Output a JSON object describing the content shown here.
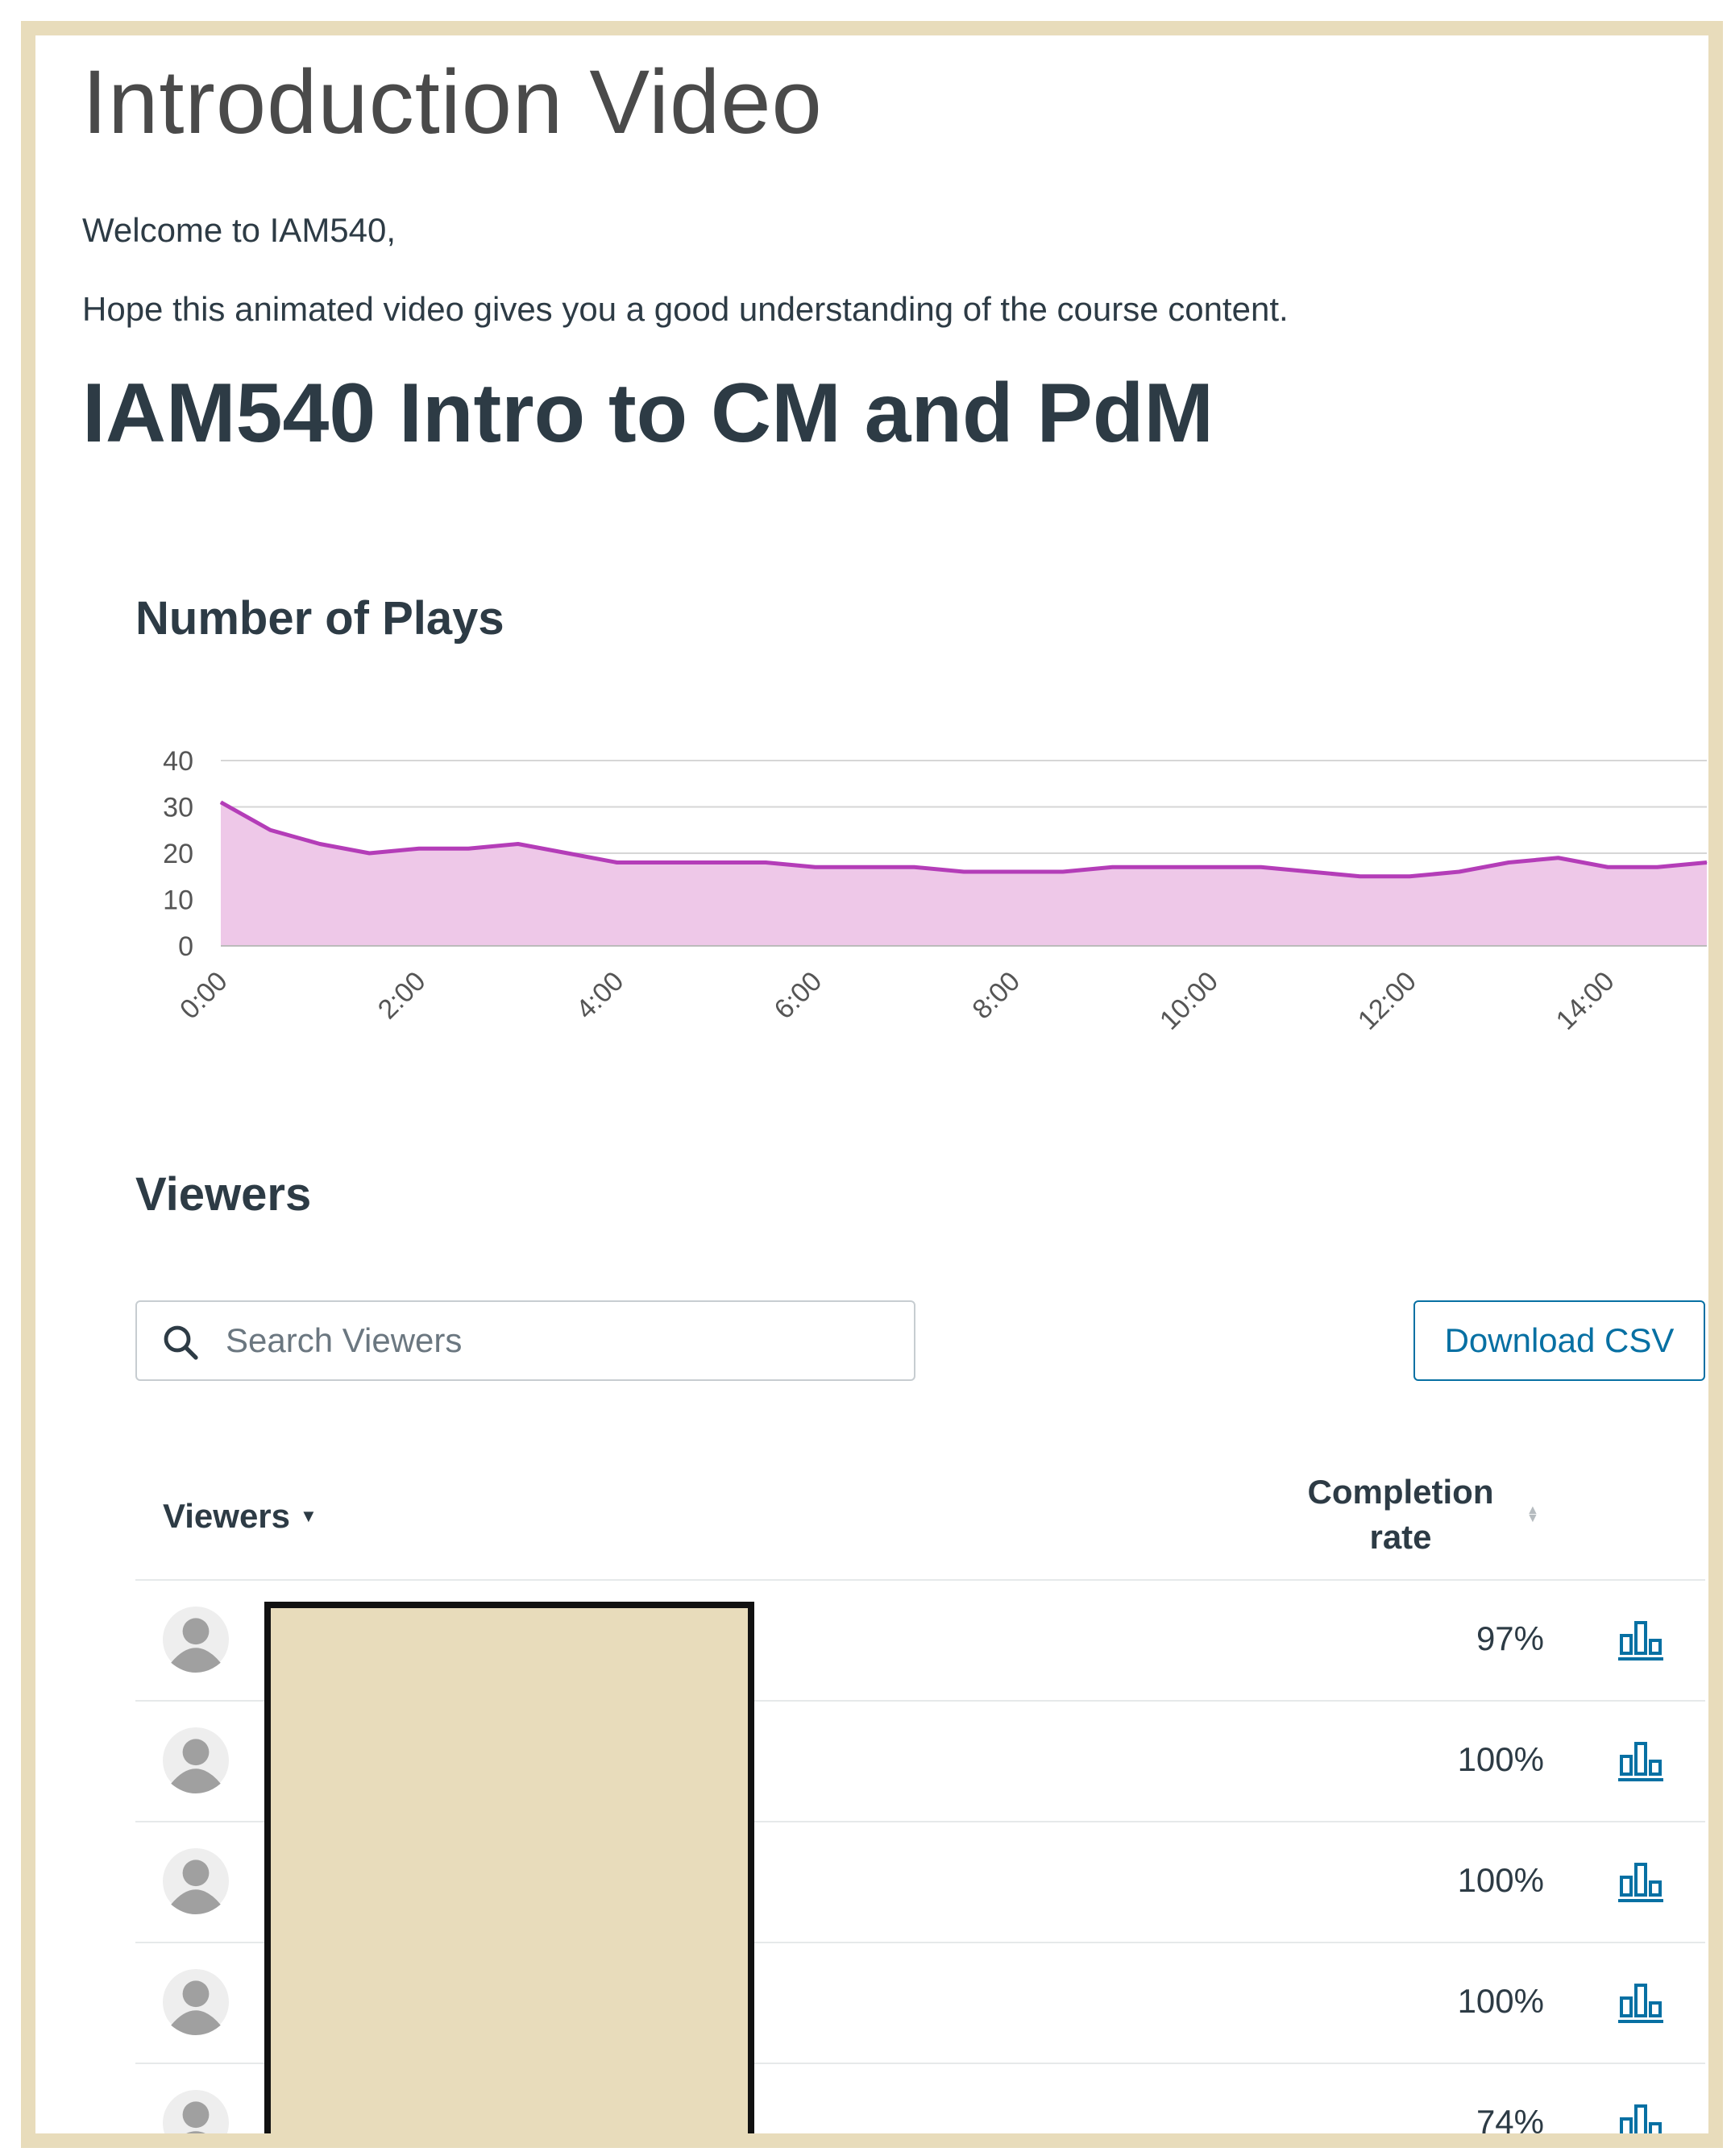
{
  "page": {
    "title": "Introduction Video",
    "paragraphs": [
      "Welcome to IAM540,",
      "Hope this animated video gives you a good understanding of the course content."
    ],
    "video_title": "IAM540 Intro to CM and PdM"
  },
  "plays_section": {
    "title": "Number of Plays"
  },
  "chart_data": {
    "type": "area",
    "title": "Number of Plays",
    "xlabel": "",
    "ylabel": "",
    "ylim": [
      0,
      40
    ],
    "yticks": [
      "0",
      "10",
      "20",
      "30",
      "40"
    ],
    "xticks": [
      "0:00",
      "2:00",
      "4:00",
      "6:00",
      "8:00",
      "10:00",
      "12:00",
      "14:00"
    ],
    "xlim_minutes": [
      0,
      15
    ],
    "grid": true,
    "colors": {
      "line": "#b43db8",
      "fill": "#eec8e8",
      "grid": "#d6d6d6"
    },
    "series": [
      {
        "x": [
          "0:00",
          "0:30",
          "1:00",
          "1:30",
          "2:00",
          "2:30",
          "3:00",
          "3:30",
          "4:00",
          "4:30",
          "5:00",
          "5:30",
          "6:00",
          "6:30",
          "7:00",
          "7:30",
          "8:00",
          "8:30",
          "9:00",
          "9:30",
          "10:00",
          "10:30",
          "11:00",
          "11:30",
          "12:00",
          "12:30",
          "13:00",
          "13:30",
          "14:00",
          "14:30",
          "15:00"
        ],
        "values": [
          31,
          25,
          22,
          20,
          21,
          21,
          22,
          20,
          18,
          18,
          18,
          18,
          17,
          17,
          17,
          16,
          16,
          16,
          17,
          17,
          17,
          17,
          16,
          15,
          15,
          16,
          18,
          19,
          17,
          17,
          18
        ]
      }
    ]
  },
  "viewers_section": {
    "title": "Viewers",
    "search_placeholder": "Search Viewers",
    "download_label": "Download CSV",
    "columns": {
      "viewers": "Viewers",
      "completion_line1": "Completion",
      "completion_line2": "rate"
    },
    "rows": [
      {
        "completion": "97%"
      },
      {
        "completion": "100%"
      },
      {
        "completion": "100%"
      },
      {
        "completion": "100%"
      },
      {
        "completion": "74%"
      }
    ]
  },
  "icons": {
    "search": "search-icon",
    "avatar": "user-avatar-icon",
    "stats": "bar-chart-icon",
    "sort": "sort-icon",
    "caret": "caret-down-icon"
  },
  "colors": {
    "frame": "#e8dcbb",
    "link": "#0770a3",
    "text": "#2d3b45",
    "redaction": "#e8dcbb"
  }
}
